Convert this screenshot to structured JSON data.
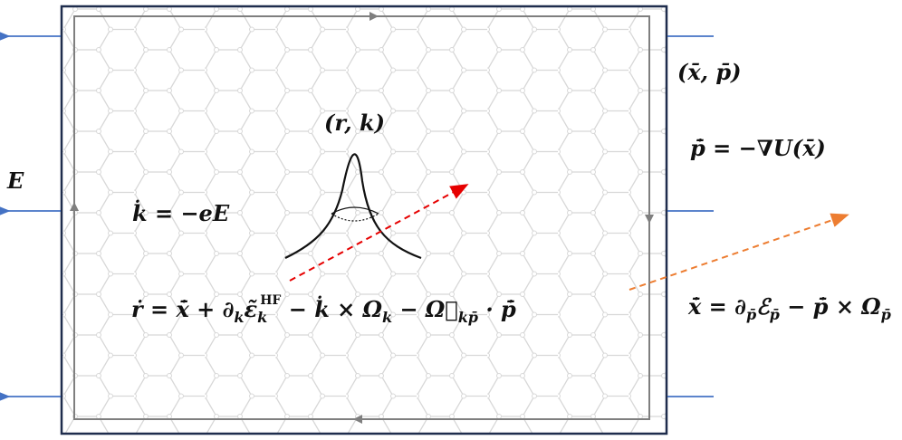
{
  "labels": {
    "field": "E",
    "wave_packet": "(r, k)",
    "bath": "(x̄, p̄)"
  },
  "equations": {
    "k_dot": "k̇ = −eE",
    "p_dot": "p̄̇ = −∇U(x̄)",
    "r_dot": [
      "ṙ = x̄̇ + ∂",
      "k",
      "ε̃",
      "k",
      "HF",
      " − k̇ × Ω",
      "k",
      "  − Ω⃡",
      "kp̄",
      " · p̄̇"
    ],
    "x_dot": [
      "x̄̇ = ∂",
      "p̄",
      "ℰ",
      "p̄",
      " − p̄̇ × Ω",
      "p̄"
    ]
  }
}
